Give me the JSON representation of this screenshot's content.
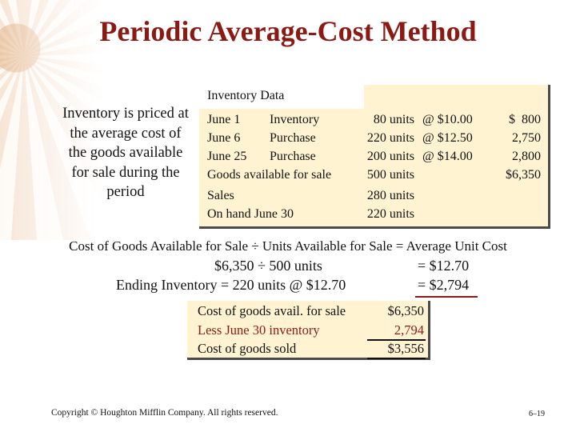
{
  "title": "Periodic Average-Cost Method",
  "left_note": "Inventory is priced at the average cost of the goods available for sale during the period",
  "inventory_table": {
    "header": "Inventory Data",
    "rows": [
      {
        "date": "June 1",
        "type": "Inventory",
        "units": "80 units",
        "price": "@ $10.00",
        "total": "$  800"
      },
      {
        "date": "June 6",
        "type": "Purchase",
        "units": "220 units",
        "price": "@ $12.50",
        "total": "2,750"
      },
      {
        "date": "June 25",
        "type": "Purchase",
        "units": "200 units",
        "price": "@ $14.00",
        "total": "2,800"
      },
      {
        "label": "Goods available for sale",
        "units": "500 units",
        "total": "$6,350"
      },
      {
        "label": "Sales",
        "units": "280 units"
      },
      {
        "label": "On hand June 30",
        "units": "220 units"
      }
    ]
  },
  "formula": "Cost of Goods Available for Sale ÷ Units Available for Sale = Average Unit Cost",
  "calc": {
    "line1_left": "$6,350 ÷ 500 units",
    "line1_right": "= $12.70",
    "line2_left": "Ending Inventory = 220 units @ $12.70",
    "line2_eq": "= ",
    "line2_value": "$2,794"
  },
  "cogs": {
    "rows": [
      {
        "label": "Cost of goods avail. for sale",
        "value": "$6,350"
      },
      {
        "label": "Less June 30 inventory",
        "value": "2,794"
      },
      {
        "label": "Cost of goods sold",
        "value": "$3,556"
      }
    ]
  },
  "footer": {
    "copyright": "Copyright © Houghton Mifflin Company.  All rights reserved.",
    "page": "6–19"
  },
  "colors": {
    "title": "#8b1a14",
    "panel_bg": "#fff3d1",
    "shadow": "#4a4a4a"
  }
}
